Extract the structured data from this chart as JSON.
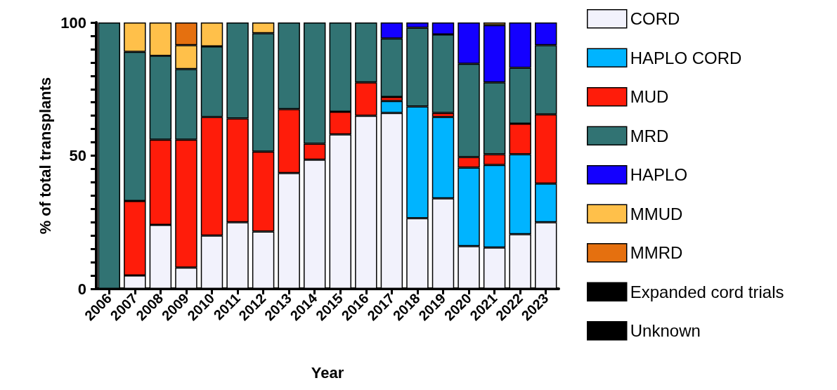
{
  "chart_data": {
    "type": "bar",
    "stacked": true,
    "xlabel": "Year",
    "ylabel": "% of total transplants",
    "categories": [
      "2006",
      "2007",
      "2008",
      "2009",
      "2010",
      "2011",
      "2012",
      "2013",
      "2014",
      "2015",
      "2016",
      "2017",
      "2018",
      "2019",
      "2020",
      "2021",
      "2022",
      "2023"
    ],
    "series": [
      {
        "name": "CORD",
        "color": "#f2f2fc",
        "values": [
          0,
          5,
          24,
          8,
          20,
          25,
          21.5,
          43.5,
          48.5,
          58,
          65,
          66,
          26.5,
          34,
          16,
          15.5,
          20.5,
          25
        ]
      },
      {
        "name": "HAPLO CORD",
        "color": "#00b4ff",
        "values": [
          0,
          0,
          0,
          0,
          0,
          0,
          0,
          0,
          0,
          0,
          0,
          4.5,
          42,
          30.5,
          29.5,
          31,
          30,
          14.5
        ]
      },
      {
        "name": "MUD",
        "color": "#ff1c0a",
        "values": [
          0,
          28,
          32,
          48,
          44.5,
          39,
          30,
          24,
          6,
          8.5,
          12.5,
          1.5,
          0,
          1.5,
          4,
          4,
          11.5,
          26
        ]
      },
      {
        "name": "MRD",
        "color": "#317373",
        "values": [
          100,
          56,
          31.5,
          26.5,
          26.5,
          36,
          44.5,
          32.5,
          45.5,
          33.5,
          22.5,
          22,
          29.5,
          29.5,
          35,
          27,
          21,
          26
        ]
      },
      {
        "name": "HAPLO",
        "color": "#1400ff",
        "values": [
          0,
          0,
          0,
          0,
          0,
          0,
          0,
          0,
          0,
          0,
          0,
          6,
          2,
          4.5,
          15.5,
          21.5,
          17,
          8.5
        ]
      },
      {
        "name": "MMUD",
        "color": "#ffc04a",
        "values": [
          0,
          11,
          12.5,
          9,
          9,
          0,
          4,
          0,
          0,
          0,
          0,
          0,
          0,
          0,
          0,
          1,
          0,
          0
        ]
      },
      {
        "name": "MMRD",
        "color": "#e5700f",
        "values": [
          0,
          0,
          0,
          8.5,
          0,
          0,
          0,
          0,
          0,
          0,
          0,
          0,
          0,
          0,
          0,
          0,
          0,
          0
        ]
      },
      {
        "name": "Expanded cord trials",
        "color": "#000000",
        "values": [
          0,
          0,
          0,
          0,
          0,
          0,
          0,
          0,
          0,
          0,
          0,
          0,
          0,
          0,
          0,
          0,
          0,
          0
        ]
      },
      {
        "name": "Unknown",
        "color": "#000000",
        "values": [
          0,
          0,
          0,
          0,
          0,
          0,
          0,
          0,
          0,
          0,
          0,
          0,
          0,
          0,
          0,
          0,
          0,
          0
        ]
      }
    ],
    "ylim": [
      0,
      100
    ],
    "yticks": [
      0,
      {
        "value": 5,
        "label": null
      },
      {
        "value": 10,
        "label": null
      },
      {
        "value": 15,
        "label": null
      },
      {
        "value": 20,
        "label": null
      },
      {
        "value": 25,
        "label": null
      },
      {
        "value": 30,
        "label": null
      },
      {
        "value": 35,
        "label": null
      },
      {
        "value": 40,
        "label": null
      },
      {
        "value": 45,
        "label": null
      },
      50,
      {
        "value": 55,
        "label": null
      },
      {
        "value": 60,
        "label": null
      },
      {
        "value": 65,
        "label": null
      },
      {
        "value": 70,
        "label": null
      },
      {
        "value": 75,
        "label": null
      },
      {
        "value": 80,
        "label": null
      },
      {
        "value": 85,
        "label": null
      },
      {
        "value": 90,
        "label": null
      },
      {
        "value": 95,
        "label": null
      },
      100
    ],
    "grid": false,
    "legend": "right"
  }
}
